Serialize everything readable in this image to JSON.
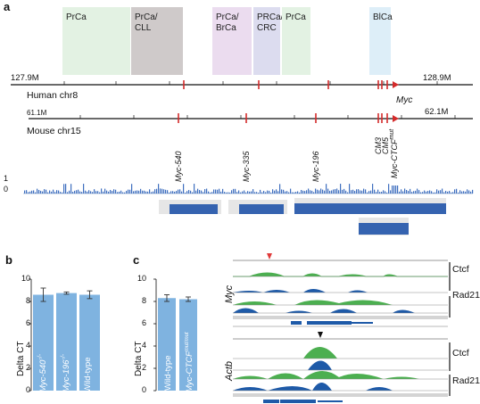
{
  "panels": {
    "a": "a",
    "b": "b",
    "c": "c"
  },
  "risk_regions": [
    {
      "label": "PrCa",
      "color": "#e3f2e3"
    },
    {
      "label": "PrCa/\nCLL",
      "color": "#cfcaca"
    },
    {
      "label": "PrCa/\nBrCa",
      "color": "#ebdcef"
    },
    {
      "label": "PRCa/\nCRC",
      "color": "#dcdcef"
    },
    {
      "label": "PrCa",
      "color": "#e3f2e3"
    },
    {
      "label": "BlCa",
      "color": "#ddeef8"
    }
  ],
  "human": {
    "start": "127.9M",
    "end": "128.9M",
    "label": "Human chr8"
  },
  "mouse": {
    "start": "61.1M",
    "end": "62.1M",
    "label": "Mouse chr15",
    "gene": "Myc"
  },
  "mouse_elements": [
    "Myc-540",
    "Myc-335",
    "Myc-196",
    "CM3",
    "CM5",
    "Myc-CTCF"
  ],
  "mouse_element_sup": "mut",
  "track_scale": {
    "top": "1",
    "bottom": "0"
  },
  "chart_b": {
    "type": "bar",
    "ylabel": "Delta CT",
    "yticks": [
      "10",
      "8",
      "6",
      "4",
      "2",
      "0"
    ],
    "ylim": [
      0,
      10
    ],
    "categories": [
      "Myc-540",
      "Myc-196",
      "Wild-type"
    ],
    "category_sup": [
      "-/-",
      "-/-",
      ""
    ],
    "values": [
      8.6,
      8.75,
      8.6
    ],
    "errors": [
      0.6,
      0.1,
      0.35
    ],
    "color": "#7fb3e0"
  },
  "chart_c": {
    "type": "bar",
    "ylabel": "Delta CT",
    "yticks": [
      "10",
      "8",
      "6",
      "4",
      "2",
      "0"
    ],
    "ylim": [
      0,
      10
    ],
    "categories": [
      "Wild-type",
      "Myc-CTCF"
    ],
    "category_sup": [
      "",
      "mut/mut"
    ],
    "values": [
      8.3,
      8.2
    ],
    "errors": [
      0.3,
      0.2
    ],
    "color": "#7fb3e0"
  },
  "chip": {
    "myc": {
      "gene": "Myc",
      "tracks": [
        "Ctcf",
        "Rad21"
      ]
    },
    "actb": {
      "gene": "Actb",
      "tracks": [
        "Ctcf",
        "Rad21"
      ]
    },
    "colors": {
      "ko": "#4caf50",
      "wt": "#1e5aa8"
    }
  }
}
